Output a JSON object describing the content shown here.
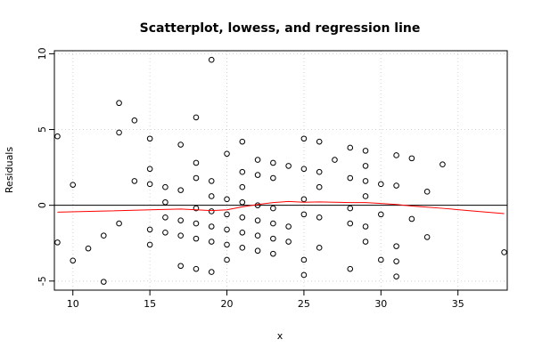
{
  "chart_data": {
    "type": "scatter",
    "title": "Scatterplot, lowess, and regression line",
    "xlabel": "x",
    "ylabel": "Residuals",
    "xlim": [
      8.8,
      38.2
    ],
    "ylim": [
      -5.6,
      10.2
    ],
    "x_ticks": [
      10,
      15,
      20,
      25,
      30,
      35
    ],
    "y_ticks": [
      -5,
      0,
      5,
      10
    ],
    "grid": true,
    "regression_line": {
      "y": 0
    },
    "colors": {
      "points": "#000000",
      "lowess": "#ff0000",
      "grid": "#d3d3d3",
      "reference": "#000000"
    },
    "points": [
      [
        9,
        4.55
      ],
      [
        9,
        -2.45
      ],
      [
        10,
        1.35
      ],
      [
        10,
        -3.65
      ],
      [
        11,
        -2.85
      ],
      [
        12,
        -2.0
      ],
      [
        12,
        -5.05
      ],
      [
        13,
        6.75
      ],
      [
        13,
        4.8
      ],
      [
        13,
        -1.2
      ],
      [
        14,
        5.6
      ],
      [
        14,
        1.6
      ],
      [
        15,
        4.4
      ],
      [
        15,
        2.4
      ],
      [
        15,
        1.4
      ],
      [
        15,
        -1.6
      ],
      [
        15,
        -2.6
      ],
      [
        16,
        1.2
      ],
      [
        16,
        0.2
      ],
      [
        16,
        -0.8
      ],
      [
        16,
        -1.8
      ],
      [
        17,
        4.0
      ],
      [
        17,
        1.0
      ],
      [
        17,
        -1.0
      ],
      [
        17,
        -2.0
      ],
      [
        17,
        -4.0
      ],
      [
        18,
        5.8
      ],
      [
        18,
        2.8
      ],
      [
        18,
        1.8
      ],
      [
        18,
        -0.2
      ],
      [
        18,
        -1.2
      ],
      [
        18,
        -2.2
      ],
      [
        18,
        -4.2
      ],
      [
        19,
        9.6
      ],
      [
        19,
        1.6
      ],
      [
        19,
        0.6
      ],
      [
        19,
        -0.4
      ],
      [
        19,
        -1.4
      ],
      [
        19,
        -2.4
      ],
      [
        19,
        -4.4
      ],
      [
        20,
        3.4
      ],
      [
        20,
        0.4
      ],
      [
        20,
        -0.6
      ],
      [
        20,
        -1.6
      ],
      [
        20,
        -2.6
      ],
      [
        20,
        -3.6
      ],
      [
        21,
        4.2
      ],
      [
        21,
        2.2
      ],
      [
        21,
        1.2
      ],
      [
        21,
        0.2
      ],
      [
        21,
        -0.8
      ],
      [
        21,
        -1.8
      ],
      [
        21,
        -2.8
      ],
      [
        22,
        3.0
      ],
      [
        22,
        2.0
      ],
      [
        22,
        0.0
      ],
      [
        22,
        -1.0
      ],
      [
        22,
        -2.0
      ],
      [
        22,
        -3.0
      ],
      [
        23,
        2.8
      ],
      [
        23,
        1.8
      ],
      [
        23,
        -0.2
      ],
      [
        23,
        -1.2
      ],
      [
        23,
        -2.2
      ],
      [
        23,
        -3.2
      ],
      [
        24,
        2.6
      ],
      [
        24,
        -1.4
      ],
      [
        24,
        -2.4
      ],
      [
        25,
        4.4
      ],
      [
        25,
        2.4
      ],
      [
        25,
        0.4
      ],
      [
        25,
        -0.6
      ],
      [
        25,
        -3.6
      ],
      [
        25,
        -4.6
      ],
      [
        26,
        4.2
      ],
      [
        26,
        2.2
      ],
      [
        26,
        1.2
      ],
      [
        26,
        -0.8
      ],
      [
        26,
        -2.8
      ],
      [
        27,
        3.0
      ],
      [
        28,
        3.8
      ],
      [
        28,
        1.8
      ],
      [
        28,
        -0.2
      ],
      [
        28,
        -1.2
      ],
      [
        28,
        -4.2
      ],
      [
        29,
        3.6
      ],
      [
        29,
        2.6
      ],
      [
        29,
        1.6
      ],
      [
        29,
        0.6
      ],
      [
        29,
        -1.4
      ],
      [
        29,
        -2.4
      ],
      [
        30,
        1.4
      ],
      [
        30,
        -0.6
      ],
      [
        30,
        -3.6
      ],
      [
        31,
        3.3
      ],
      [
        31,
        1.3
      ],
      [
        31,
        -2.7
      ],
      [
        31,
        -3.7
      ],
      [
        31,
        -4.7
      ],
      [
        32,
        3.1
      ],
      [
        32,
        -0.9
      ],
      [
        33,
        0.9
      ],
      [
        33,
        -2.1
      ],
      [
        34,
        2.7
      ],
      [
        38,
        -3.1
      ]
    ],
    "lowess": [
      [
        9,
        -0.45
      ],
      [
        12,
        -0.38
      ],
      [
        15,
        -0.3
      ],
      [
        17,
        -0.25
      ],
      [
        18,
        -0.3
      ],
      [
        19,
        -0.35
      ],
      [
        20,
        -0.3
      ],
      [
        21,
        -0.1
      ],
      [
        22,
        0.05
      ],
      [
        23,
        0.18
      ],
      [
        24,
        0.25
      ],
      [
        25,
        0.2
      ],
      [
        26,
        0.22
      ],
      [
        27,
        0.2
      ],
      [
        28,
        0.18
      ],
      [
        29,
        0.18
      ],
      [
        30,
        0.12
      ],
      [
        31,
        0.05
      ],
      [
        32,
        -0.05
      ],
      [
        34,
        -0.2
      ],
      [
        36,
        -0.38
      ],
      [
        38,
        -0.55
      ]
    ]
  }
}
